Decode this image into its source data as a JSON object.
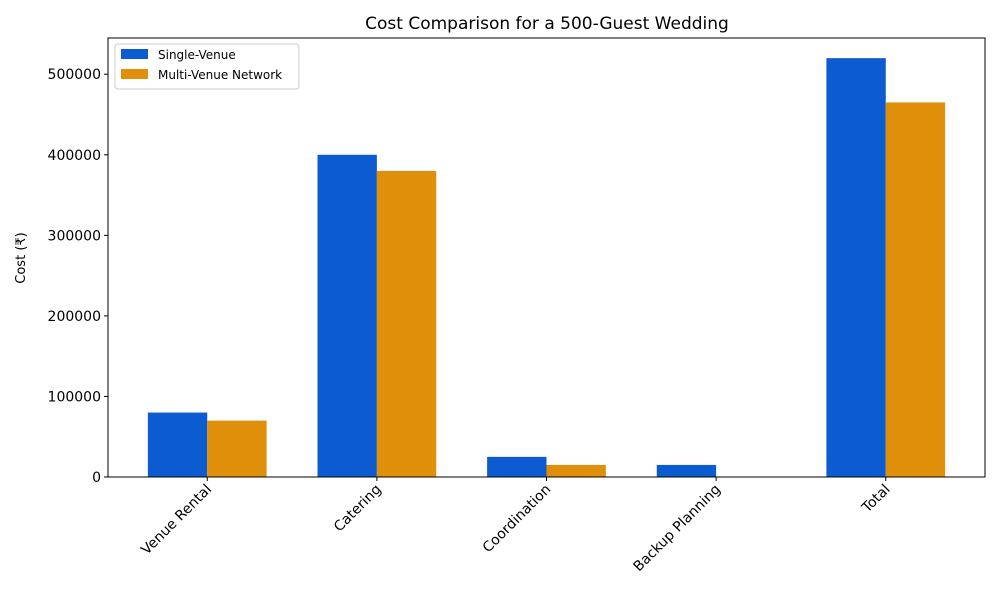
{
  "chart_data": {
    "type": "bar",
    "title": "Cost Comparison for a 500-Guest Wedding",
    "xlabel": "",
    "ylabel": "Cost (₹)",
    "categories": [
      "Venue Rental",
      "Catering",
      "Coordination",
      "Backup Planning",
      "Total"
    ],
    "series": [
      {
        "name": "Single-Venue",
        "color": "#0d5bd1",
        "values": [
          80000,
          400000,
          25000,
          15000,
          520000
        ]
      },
      {
        "name": "Multi-Venue Network",
        "color": "#e08f0a",
        "values": [
          70000,
          380000,
          15000,
          0,
          465000
        ]
      }
    ],
    "ylim": [
      0,
      545000
    ],
    "yticks": [
      0,
      100000,
      200000,
      300000,
      400000,
      500000
    ],
    "grid": false,
    "legend": "top-left"
  }
}
